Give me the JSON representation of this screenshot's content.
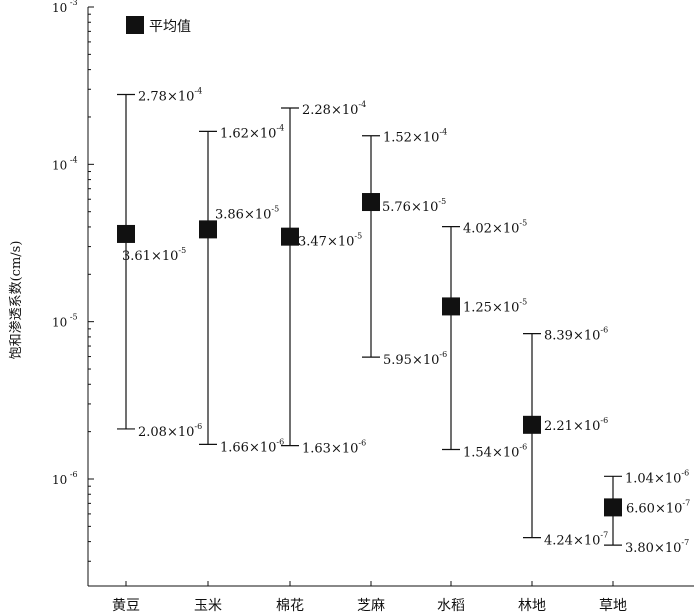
{
  "chart_data": {
    "type": "errorbar",
    "ylabel": "饱和渗透系数(cm/s)",
    "yscale": "log",
    "ylim": [
      2.5e-07,
      0.001
    ],
    "yticks": [
      {
        "value": 0.001,
        "mantissa": "10",
        "exp": "-3"
      },
      {
        "value": 0.0001,
        "mantissa": "10",
        "exp": "-4"
      },
      {
        "value": 1e-05,
        "mantissa": "10",
        "exp": "-5"
      },
      {
        "value": 1e-06,
        "mantissa": "10",
        "exp": "-6"
      }
    ],
    "legend": {
      "label": "平均值",
      "position": "top-left"
    },
    "categories": [
      "黄豆",
      "玉米",
      "棉花",
      "芝麻",
      "水稻",
      "林地",
      "草地"
    ],
    "points": [
      {
        "category": "黄豆",
        "mean": 3.61e-05,
        "max": 0.000278,
        "min": 2.08e-06,
        "mean_label": {
          "m": "3.61",
          "e": "-5"
        },
        "max_label": {
          "m": "2.78",
          "e": "-4"
        },
        "min_label": {
          "m": "2.08",
          "e": "-6"
        }
      },
      {
        "category": "玉米",
        "mean": 3.86e-05,
        "max": 0.000162,
        "min": 1.66e-06,
        "mean_label": {
          "m": "3.86",
          "e": "-5"
        },
        "max_label": {
          "m": "1.62",
          "e": "-4"
        },
        "min_label": {
          "m": "1.66",
          "e": "-6"
        }
      },
      {
        "category": "棉花",
        "mean": 3.47e-05,
        "max": 0.000228,
        "min": 1.63e-06,
        "mean_label": {
          "m": "3.47",
          "e": "-5"
        },
        "max_label": {
          "m": "2.28",
          "e": "-4"
        },
        "min_label": {
          "m": "1.63",
          "e": "-6"
        }
      },
      {
        "category": "芝麻",
        "mean": 5.76e-05,
        "max": 0.000152,
        "min": 5.95e-06,
        "mean_label": {
          "m": "5.76",
          "e": "-5"
        },
        "max_label": {
          "m": "1.52",
          "e": "-4"
        },
        "min_label": {
          "m": "5.95",
          "e": "-6"
        }
      },
      {
        "category": "水稻",
        "mean": 1.25e-05,
        "max": 4.02e-05,
        "min": 1.54e-06,
        "mean_label": {
          "m": "1.25",
          "e": "-5"
        },
        "max_label": {
          "m": "4.02",
          "e": "-5"
        },
        "min_label": {
          "m": "1.54",
          "e": "-6"
        }
      },
      {
        "category": "林地",
        "mean": 2.21e-06,
        "max": 8.39e-06,
        "min": 4.24e-07,
        "mean_label": {
          "m": "2.21",
          "e": "-6"
        },
        "max_label": {
          "m": "8.39",
          "e": "-6"
        },
        "min_label": {
          "m": "4.24",
          "e": "-7"
        }
      },
      {
        "category": "草地",
        "mean": 6.6e-07,
        "max": 1.04e-06,
        "min": 3.8e-07,
        "mean_label": {
          "m": "6.60",
          "e": "-7"
        },
        "max_label": {
          "m": "1.04",
          "e": "-6"
        },
        "min_label": {
          "m": "3.80",
          "e": "-7"
        }
      }
    ],
    "times_sign": "×",
    "colors": {
      "marker": "#111111",
      "line": "#111111"
    }
  }
}
